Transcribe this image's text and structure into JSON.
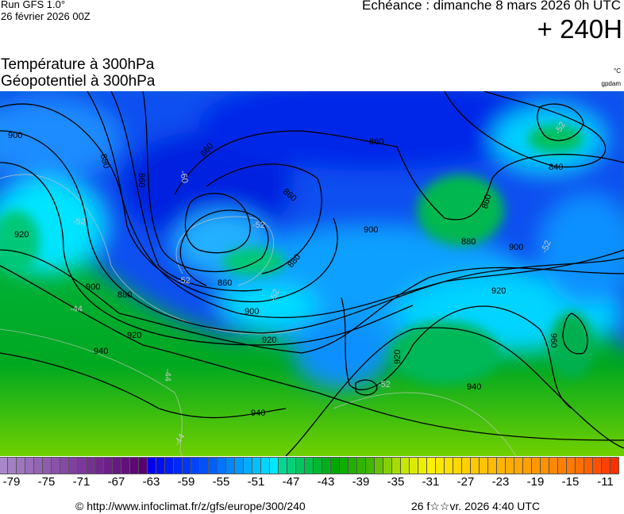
{
  "header": {
    "run": "Run GFS 1.0°",
    "run_date": "26 février 2026 00Z",
    "valid": "Echéance : dimanche 8 mars 2026 0h UTC",
    "lead": "+ 240H",
    "title_temperature": "Température à 300hPa",
    "title_geopotential": "Géopotentiel à 300hPa",
    "unit_temperature": "°C",
    "unit_geopotential": "gpdam"
  },
  "map": {
    "region": "Europe / North Atlantic",
    "geopotential_labels": [
      "900",
      "880",
      "860",
      "860",
      "920",
      "900",
      "880",
      "860",
      "900",
      "920",
      "940",
      "920",
      "880",
      "860",
      "860",
      "900",
      "880",
      "860",
      "900",
      "840",
      "920",
      "920",
      "960",
      "940",
      "940"
    ],
    "temperature_labels": [
      "-52",
      "-52",
      "-60",
      "-52",
      "-44",
      "-44",
      "-44",
      "-52",
      "-52",
      "-52",
      "-52"
    ]
  },
  "colorbar": {
    "min": -80,
    "max": -10,
    "step": 1,
    "labels": [
      "-79",
      "-75",
      "-71",
      "-67",
      "-63",
      "-59",
      "-55",
      "-51",
      "-47",
      "-43",
      "-39",
      "-35",
      "-31",
      "-27",
      "-23",
      "-19",
      "-15",
      "-11"
    ],
    "stops": [
      [
        -80,
        "#a888c8"
      ],
      [
        -72,
        "#8040a0"
      ],
      [
        -64,
        "#580070"
      ],
      [
        -63,
        "#0000f0"
      ],
      [
        -56,
        "#0060ff"
      ],
      [
        -49,
        "#00e8ff"
      ],
      [
        -48,
        "#00d890"
      ],
      [
        -42,
        "#00a800"
      ],
      [
        -38,
        "#40b800"
      ],
      [
        -34,
        "#c8e800"
      ],
      [
        -31,
        "#fff000"
      ],
      [
        -26,
        "#ffc800"
      ],
      [
        -20,
        "#ffa000"
      ],
      [
        -14,
        "#ff7000"
      ],
      [
        -10,
        "#ff3000"
      ]
    ]
  },
  "footer": {
    "copyright": "© http://www.infoclimat.fr/z/gfs/europe/300/240",
    "generated": "26 f☆☆vr. 2026  4:40 UTC"
  }
}
